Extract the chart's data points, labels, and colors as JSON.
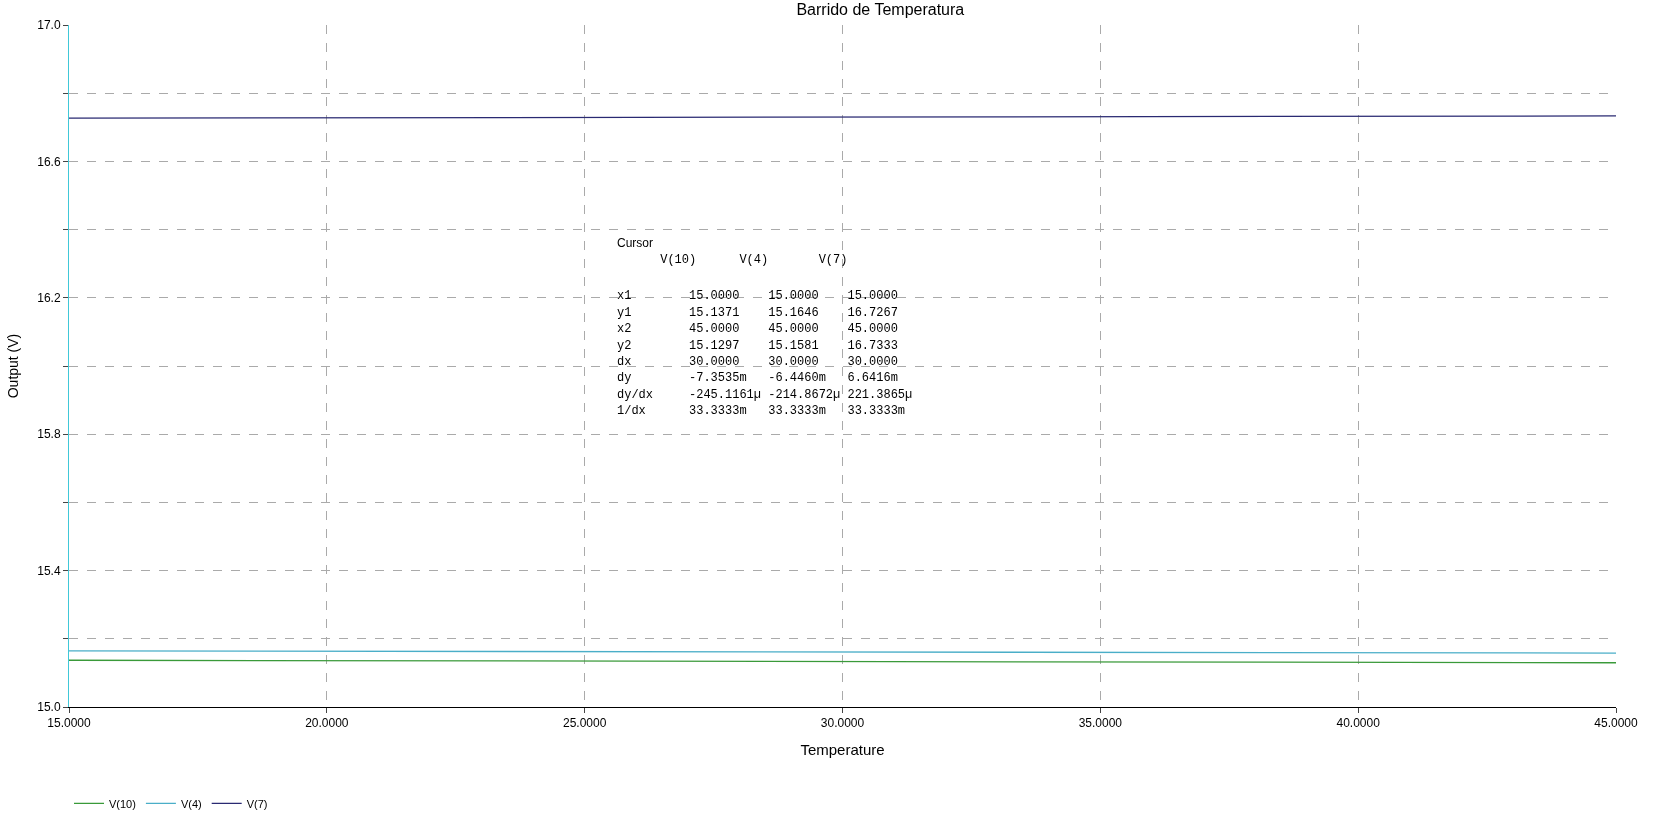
{
  "chart_data": {
    "type": "line",
    "title": "Barrido de Temperatura",
    "xlabel": "Temperature",
    "ylabel": "Output (V)",
    "x": [
      15,
      45
    ],
    "series": [
      {
        "name": "V(10)",
        "color": "#3a9a3a",
        "values": [
          15.1371,
          15.1297
        ]
      },
      {
        "name": "V(4)",
        "color": "#4aaec8",
        "values": [
          15.1646,
          15.1581
        ]
      },
      {
        "name": "V(7)",
        "color": "#2a2a72",
        "values": [
          16.7267,
          16.7333
        ]
      }
    ],
    "xlim": [
      15,
      45
    ],
    "xticks": [
      {
        "value": 15,
        "label": "15.0000"
      },
      {
        "value": 20,
        "label": "20.0000"
      },
      {
        "value": 25,
        "label": "25.0000"
      },
      {
        "value": 30,
        "label": "30.0000"
      },
      {
        "value": 35,
        "label": "35.0000"
      },
      {
        "value": 40,
        "label": "40.0000"
      },
      {
        "value": 45,
        "label": "45.0000"
      }
    ],
    "ylim": [
      15.0,
      17.0
    ],
    "yticks": [
      {
        "value": 15.0,
        "label": "15.0"
      },
      {
        "value": 15.2,
        "label": null
      },
      {
        "value": 15.4,
        "label": "15.4"
      },
      {
        "value": 15.6,
        "label": null
      },
      {
        "value": 15.8,
        "label": "15.8"
      },
      {
        "value": 16.0,
        "label": null
      },
      {
        "value": 16.2,
        "label": "16.2"
      },
      {
        "value": 16.4,
        "label": null
      },
      {
        "value": 16.6,
        "label": "16.6"
      },
      {
        "value": 16.8,
        "label": null
      },
      {
        "value": 17.0,
        "label": "17.0"
      }
    ],
    "grid": true,
    "legend": "bottom left",
    "marker": "none",
    "line_style": "solid",
    "annotations": [
      "Cursor",
      "      V(10)      V(4)       V(7)",
      "x1        15.0000    15.0000    15.0000",
      "y1        15.1371    15.1646    16.7267",
      "x2        45.0000    45.0000    45.0000",
      "y2        15.1297    15.1581    16.7333",
      "dx        30.0000    30.0000    30.0000",
      "dy        -7.3535m   -6.4460m   6.6416m",
      "dy/dx     -245.1161µ -214.8672µ 221.3865µ",
      "1/dx      33.3333m   33.3333m   33.3333m"
    ]
  }
}
